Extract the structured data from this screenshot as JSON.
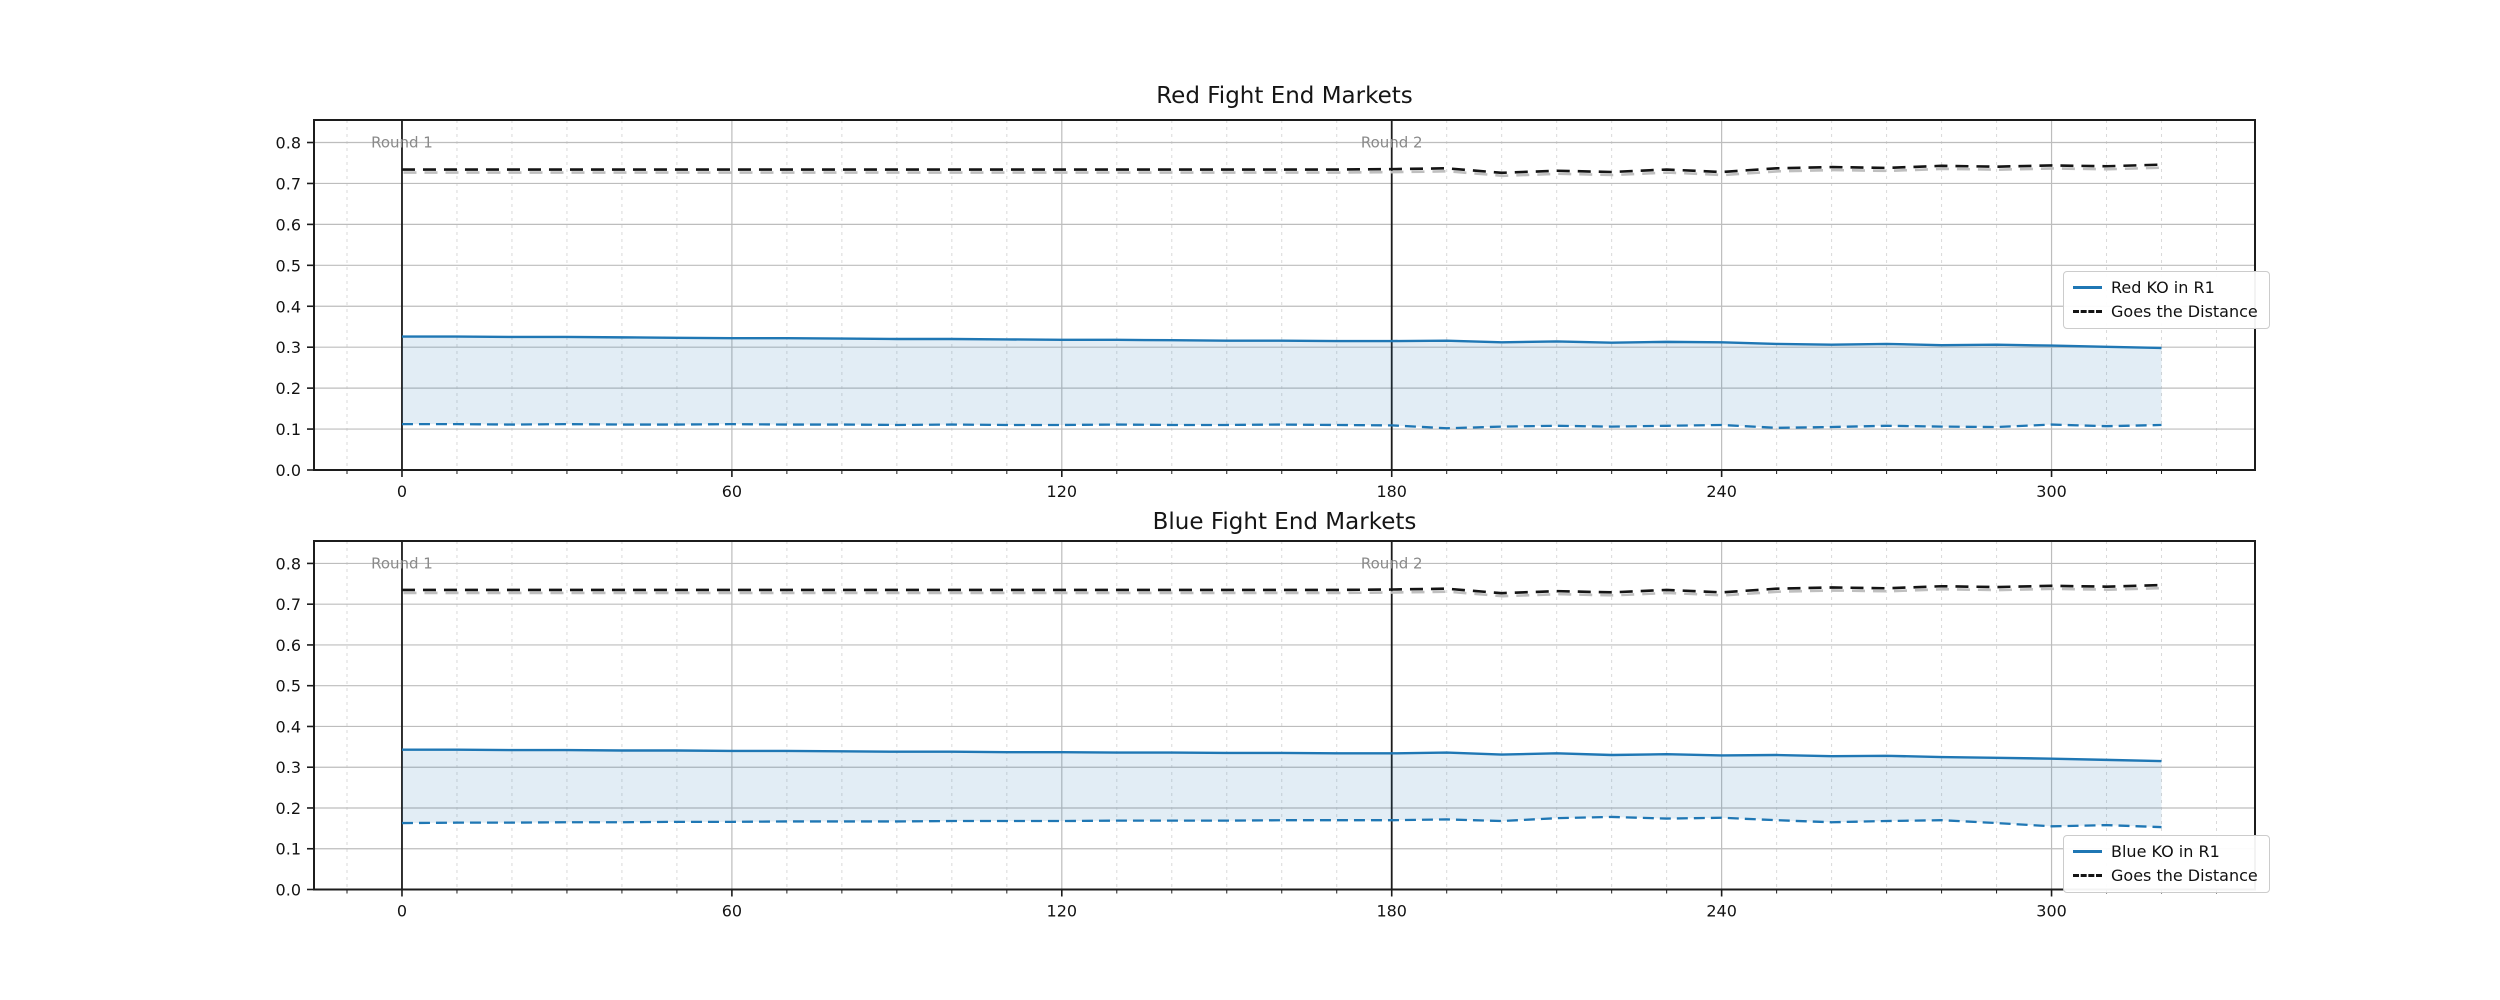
{
  "figure": {
    "background": "#ffffff",
    "accent_blue": "#1f77b4",
    "grid_major_color": "#bdbdbd",
    "grid_minor_color": "#d9d9d9",
    "spine_color": "#1c1c1c",
    "annotation_color": "#8a8a8a"
  },
  "chart_data": [
    {
      "type": "line",
      "title": "Red Fight End Markets",
      "xlabel": "",
      "ylabel": "",
      "xlim": [
        -16,
        337
      ],
      "ylim": [
        0,
        0.855
      ],
      "xticks": [
        0,
        60,
        120,
        180,
        240,
        300
      ],
      "yticks": [
        0.0,
        0.1,
        0.2,
        0.3,
        0.4,
        0.5,
        0.6,
        0.7,
        0.8
      ],
      "minor_x_step": 10,
      "grid": true,
      "legend_position": "center right",
      "x": [
        0,
        10,
        20,
        30,
        40,
        50,
        60,
        70,
        80,
        90,
        100,
        110,
        120,
        130,
        140,
        150,
        160,
        170,
        180,
        190,
        200,
        210,
        220,
        230,
        240,
        250,
        260,
        270,
        280,
        290,
        300,
        310,
        320
      ],
      "series": [
        {
          "name": "Red KO in R1",
          "style": "solid",
          "color": "#1f77b4",
          "shadow": false,
          "values": [
            0.326,
            0.326,
            0.325,
            0.325,
            0.324,
            0.323,
            0.322,
            0.322,
            0.321,
            0.32,
            0.32,
            0.319,
            0.318,
            0.318,
            0.317,
            0.316,
            0.316,
            0.315,
            0.315,
            0.316,
            0.312,
            0.314,
            0.311,
            0.313,
            0.312,
            0.308,
            0.306,
            0.308,
            0.305,
            0.306,
            0.304,
            0.301,
            0.298
          ]
        },
        {
          "name": "Red KO in R1 band lower bound",
          "style": "dashed",
          "color": "#1f77b4",
          "shadow": false,
          "values": [
            0.112,
            0.112,
            0.111,
            0.112,
            0.111,
            0.111,
            0.112,
            0.111,
            0.111,
            0.11,
            0.111,
            0.11,
            0.11,
            0.111,
            0.11,
            0.11,
            0.111,
            0.11,
            0.109,
            0.102,
            0.106,
            0.108,
            0.106,
            0.108,
            0.11,
            0.103,
            0.105,
            0.108,
            0.106,
            0.105,
            0.111,
            0.107,
            0.11
          ]
        },
        {
          "name": "Goes the Distance",
          "style": "dashed",
          "color": "#141414",
          "shadow": true,
          "values": [
            0.734,
            0.734,
            0.734,
            0.734,
            0.734,
            0.734,
            0.734,
            0.734,
            0.734,
            0.734,
            0.734,
            0.734,
            0.734,
            0.734,
            0.734,
            0.734,
            0.734,
            0.734,
            0.735,
            0.737,
            0.726,
            0.731,
            0.728,
            0.734,
            0.728,
            0.737,
            0.74,
            0.738,
            0.743,
            0.741,
            0.744,
            0.742,
            0.746
          ]
        }
      ],
      "band": {
        "upper_series": 0,
        "lower_series": 1,
        "fill": "rgba(31,119,180,0.13)"
      },
      "vlines": [
        {
          "x": 0,
          "label": "Round 1"
        },
        {
          "x": 180,
          "label": "Round 2"
        }
      ],
      "legend": [
        {
          "label": "Red KO in R1",
          "line": "solid",
          "color": "#1f77b4"
        },
        {
          "label": "Goes the Distance",
          "line": "dashed",
          "color": "#141414"
        }
      ]
    },
    {
      "type": "line",
      "title": "Blue Fight End Markets",
      "xlabel": "",
      "ylabel": "",
      "xlim": [
        -16,
        337
      ],
      "ylim": [
        0,
        0.855
      ],
      "xticks": [
        0,
        60,
        120,
        180,
        240,
        300
      ],
      "yticks": [
        0.0,
        0.1,
        0.2,
        0.3,
        0.4,
        0.5,
        0.6,
        0.7,
        0.8
      ],
      "minor_x_step": 10,
      "grid": true,
      "legend_position": "lower right",
      "x": [
        0,
        10,
        20,
        30,
        40,
        50,
        60,
        70,
        80,
        90,
        100,
        110,
        120,
        130,
        140,
        150,
        160,
        170,
        180,
        190,
        200,
        210,
        220,
        230,
        240,
        250,
        260,
        270,
        280,
        290,
        300,
        310,
        320
      ],
      "series": [
        {
          "name": "Blue KO in R1",
          "style": "solid",
          "color": "#1f77b4",
          "shadow": false,
          "values": [
            0.343,
            0.343,
            0.342,
            0.342,
            0.341,
            0.341,
            0.34,
            0.34,
            0.339,
            0.338,
            0.338,
            0.337,
            0.337,
            0.336,
            0.336,
            0.335,
            0.335,
            0.334,
            0.334,
            0.336,
            0.331,
            0.334,
            0.33,
            0.332,
            0.329,
            0.33,
            0.327,
            0.328,
            0.325,
            0.323,
            0.321,
            0.318,
            0.315
          ]
        },
        {
          "name": "Blue KO in R1 band lower bound",
          "style": "dashed",
          "color": "#1f77b4",
          "shadow": false,
          "values": [
            0.163,
            0.164,
            0.164,
            0.165,
            0.165,
            0.166,
            0.166,
            0.167,
            0.167,
            0.167,
            0.168,
            0.168,
            0.168,
            0.169,
            0.169,
            0.169,
            0.17,
            0.17,
            0.17,
            0.172,
            0.168,
            0.175,
            0.178,
            0.174,
            0.176,
            0.17,
            0.165,
            0.168,
            0.17,
            0.163,
            0.155,
            0.158,
            0.153
          ]
        },
        {
          "name": "Goes the Distance",
          "style": "dashed",
          "color": "#141414",
          "shadow": true,
          "values": [
            0.735,
            0.735,
            0.735,
            0.735,
            0.735,
            0.735,
            0.735,
            0.735,
            0.735,
            0.735,
            0.735,
            0.735,
            0.735,
            0.735,
            0.735,
            0.735,
            0.735,
            0.735,
            0.736,
            0.738,
            0.727,
            0.732,
            0.729,
            0.735,
            0.729,
            0.738,
            0.741,
            0.739,
            0.744,
            0.742,
            0.745,
            0.743,
            0.747
          ]
        }
      ],
      "band": {
        "upper_series": 0,
        "lower_series": 1,
        "fill": "rgba(31,119,180,0.13)"
      },
      "vlines": [
        {
          "x": 0,
          "label": "Round 1"
        },
        {
          "x": 180,
          "label": "Round 2"
        }
      ],
      "legend": [
        {
          "label": "Blue KO in R1",
          "line": "solid",
          "color": "#1f77b4"
        },
        {
          "label": "Goes the Distance",
          "line": "dashed",
          "color": "#141414"
        }
      ]
    }
  ]
}
